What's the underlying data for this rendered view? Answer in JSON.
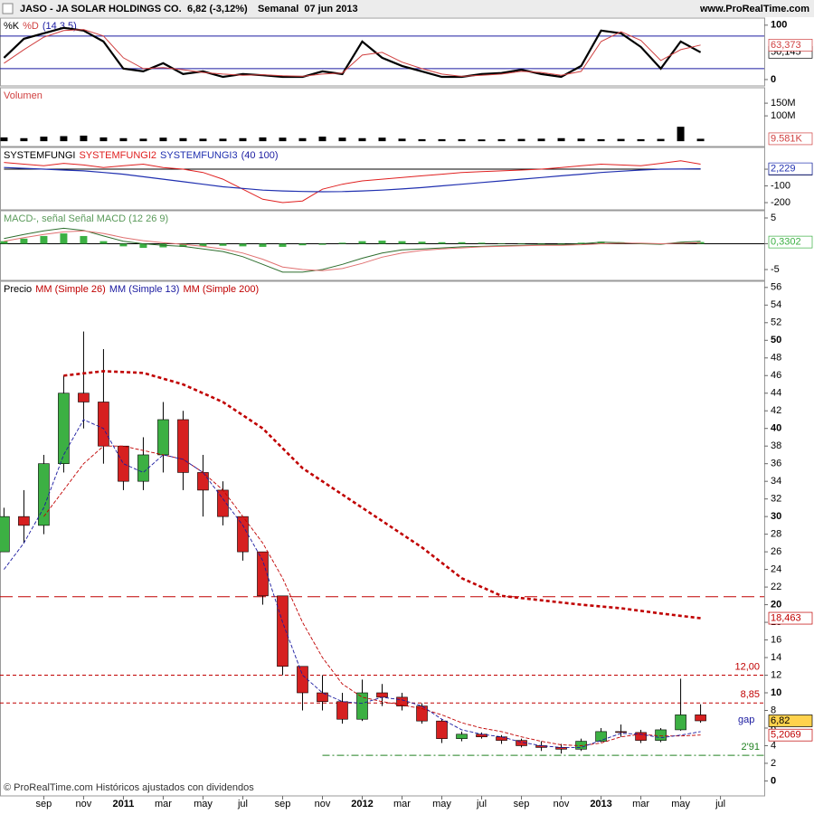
{
  "header": {
    "symbol": "JASO - JA SOLAR HOLDINGS CO.",
    "quote": "6,82 (-3,12%)",
    "period": "Semanal  07 jun 2013",
    "site": "www.ProRealTime.com"
  },
  "footer": "© ProRealTime.com Históricos ajustados con dividendos",
  "chart_data": [
    {
      "type": "line",
      "params": "(14 3 5)",
      "ylim": [
        -11.7,
        113
      ],
      "yticks": [
        0,
        100
      ],
      "x": [
        -2,
        -1,
        0,
        1,
        2,
        3,
        4,
        5,
        6,
        7,
        8,
        9,
        10,
        11,
        12,
        13,
        14,
        15,
        16,
        17,
        18,
        19,
        20,
        21,
        22,
        23,
        24,
        25,
        26,
        27,
        28,
        29,
        30,
        31,
        32,
        33
      ],
      "levels": [
        {
          "value": 80,
          "color": "#1a1aa0",
          "style": "solid"
        },
        {
          "value": 20,
          "color": "#1a1aa0",
          "style": "solid"
        }
      ],
      "series": [
        {
          "name": "%K",
          "color": "#000000",
          "width": 2.2,
          "last_label": "50,145",
          "values": [
            40,
            75,
            85,
            95,
            90,
            70,
            20,
            15,
            30,
            10,
            15,
            5,
            10,
            8,
            5,
            5,
            15,
            10,
            70,
            40,
            25,
            15,
            5,
            5,
            10,
            12,
            18,
            10,
            5,
            25,
            90,
            85,
            60,
            20,
            70,
            50.145
          ]
        },
        {
          "name": "%D",
          "color": "#d04040",
          "width": 1,
          "last_label": "63,373",
          "values": [
            30,
            55,
            78,
            90,
            92,
            80,
            40,
            20,
            22,
            18,
            13,
            10,
            8,
            9,
            7,
            6,
            10,
            12,
            45,
            50,
            32,
            20,
            10,
            6,
            8,
            10,
            15,
            13,
            8,
            15,
            70,
            88,
            72,
            35,
            55,
            63.373
          ]
        }
      ]
    },
    {
      "type": "bar",
      "title": "Volumen",
      "color": "#000000",
      "ylim": [
        -21000000,
        211000000
      ],
      "yticks": [
        {
          "value": 150000000,
          "label": "150M"
        },
        {
          "value": 100000000,
          "label": "100M"
        }
      ],
      "x": [
        -2,
        -1,
        0,
        1,
        2,
        3,
        4,
        5,
        6,
        7,
        8,
        9,
        10,
        11,
        12,
        13,
        14,
        15,
        16,
        17,
        18,
        19,
        20,
        21,
        22,
        23,
        24,
        25,
        26,
        27,
        28,
        29,
        30,
        31,
        32,
        33
      ],
      "values": [
        15000000,
        12000000,
        18000000,
        20000000,
        22000000,
        15000000,
        12000000,
        10000000,
        14000000,
        12000000,
        10000000,
        10000000,
        12000000,
        15000000,
        14000000,
        12000000,
        18000000,
        14000000,
        12000000,
        14000000,
        10000000,
        8000000,
        8000000,
        8000000,
        7000000,
        8000000,
        9000000,
        10000000,
        12000000,
        10000000,
        8000000,
        9000000,
        8000000,
        9000000,
        57000000,
        9581000
      ],
      "last_label": "9.581K"
    },
    {
      "type": "line",
      "params": "(40 100)",
      "ylim": [
        -243,
        130
      ],
      "yticks": [
        0,
        -100,
        -200
      ],
      "x": [
        -2,
        -1,
        0,
        1,
        2,
        3,
        4,
        5,
        6,
        7,
        8,
        9,
        10,
        11,
        12,
        13,
        14,
        15,
        16,
        17,
        18,
        19,
        20,
        21,
        22,
        23,
        24,
        25,
        26,
        27,
        28,
        29,
        30,
        31,
        32,
        33
      ],
      "series": [
        {
          "name": "SYSTEMFUNGI",
          "color": "#000000",
          "width": 1,
          "last_label": "0",
          "values": [
            0,
            0,
            0,
            0,
            0,
            0,
            0,
            0,
            0,
            0,
            0,
            0,
            0,
            0,
            0,
            0,
            0,
            0,
            0,
            0,
            0,
            0,
            0,
            0,
            0,
            0,
            0,
            0,
            0,
            0,
            0,
            0,
            0,
            0,
            0,
            0
          ]
        },
        {
          "name": "SYSTEMFUNGI2",
          "color": "#e02020",
          "width": 1,
          "values": [
            40,
            30,
            20,
            35,
            25,
            10,
            20,
            30,
            10,
            0,
            -20,
            -60,
            -120,
            -180,
            -200,
            -190,
            -120,
            -90,
            -70,
            -60,
            -50,
            -40,
            -30,
            -20,
            -15,
            -10,
            -5,
            0,
            10,
            20,
            30,
            25,
            20,
            35,
            50,
            30
          ]
        },
        {
          "name": "SYSTEMFUNGI3",
          "color": "#2030b0",
          "width": 1.2,
          "last_label": "2,229",
          "values": [
            10,
            5,
            0,
            -5,
            -10,
            -20,
            -30,
            -45,
            -60,
            -75,
            -90,
            -105,
            -115,
            -125,
            -130,
            -133,
            -135,
            -134,
            -130,
            -125,
            -118,
            -110,
            -100,
            -90,
            -80,
            -70,
            -60,
            -50,
            -40,
            -30,
            -20,
            -12,
            -5,
            0,
            1,
            2.229
          ]
        }
      ]
    },
    {
      "type": "combo",
      "title": "MACD-, señal Señal MACD (12 26 9)",
      "ylim": [
        -7.1,
        6.4
      ],
      "yticks": [
        5,
        0,
        -5
      ],
      "x": [
        -2,
        -1,
        0,
        1,
        2,
        3,
        4,
        5,
        6,
        7,
        8,
        9,
        10,
        11,
        12,
        13,
        14,
        15,
        16,
        17,
        18,
        19,
        20,
        21,
        22,
        23,
        24,
        25,
        26,
        27,
        28,
        29,
        30,
        31,
        32,
        33
      ],
      "levels": [
        {
          "value": 0,
          "color": "#000000",
          "style": "solid"
        }
      ],
      "bars": {
        "color": "#3cb043",
        "last_label": "0,3302",
        "values": [
          0.5,
          1,
          1.5,
          2,
          1.5,
          0.5,
          -0.5,
          -0.8,
          -0.7,
          -0.6,
          -0.5,
          -0.4,
          -0.5,
          -0.6,
          -0.6,
          -0.3,
          -0.2,
          0.2,
          0.5,
          0.6,
          0.5,
          0.4,
          0.3,
          0.3,
          0.2,
          0.1,
          0.1,
          0.1,
          0.1,
          0.2,
          0.4,
          0.3,
          0.1,
          -0.1,
          0.3,
          0.3302
        ]
      },
      "series": [
        {
          "color": "#2e6e2e",
          "width": 1,
          "values": [
            1,
            1.8,
            2.5,
            3,
            2.6,
            1.5,
            0.5,
            0,
            -0.3,
            -0.5,
            -1,
            -1.5,
            -2.5,
            -4,
            -5.5,
            -5.5,
            -5,
            -4,
            -2.8,
            -1.8,
            -1.2,
            -1,
            -0.8,
            -0.6,
            -0.5,
            -0.4,
            -0.3,
            -0.2,
            -0.2,
            0,
            0.3,
            0.2,
            0,
            -0.1,
            0.3,
            0.5
          ]
        },
        {
          "color": "#e07070",
          "width": 1,
          "values": [
            0.5,
            1.2,
            1.8,
            2.3,
            2.5,
            2,
            1.2,
            0.6,
            0.2,
            -0.1,
            -0.5,
            -1,
            -1.8,
            -3,
            -4.5,
            -5,
            -5.2,
            -4.8,
            -3.8,
            -2.6,
            -1.8,
            -1.3,
            -1,
            -0.8,
            -0.6,
            -0.5,
            -0.4,
            -0.3,
            -0.3,
            -0.2,
            0,
            0.1,
            0.1,
            0,
            0.1,
            0.2
          ]
        }
      ]
    },
    {
      "type": "candlestick",
      "title": "Precio",
      "up_color": "#3cb043",
      "down_color": "#d62020",
      "xlim": [
        -2.2,
        36.2
      ],
      "xticks": [
        {
          "value": 0,
          "label": "sep"
        },
        {
          "value": 2,
          "label": "nov"
        },
        {
          "value": 4,
          "label": "2011"
        },
        {
          "value": 6,
          "label": "mar"
        },
        {
          "value": 8,
          "label": "may"
        },
        {
          "value": 10,
          "label": "jul"
        },
        {
          "value": 12,
          "label": "sep"
        },
        {
          "value": 14,
          "label": "nov"
        },
        {
          "value": 16,
          "label": "2012"
        },
        {
          "value": 18,
          "label": "mar"
        },
        {
          "value": 20,
          "label": "may"
        },
        {
          "value": 22,
          "label": "jul"
        },
        {
          "value": 24,
          "label": "sep"
        },
        {
          "value": 26,
          "label": "nov"
        },
        {
          "value": 28,
          "label": "2013"
        },
        {
          "value": 30,
          "label": "mar"
        },
        {
          "value": 32,
          "label": "may"
        },
        {
          "value": 34,
          "label": "jul"
        }
      ],
      "ylim": [
        -1.7,
        56.7
      ],
      "yticks": [
        0,
        2,
        4,
        6,
        8,
        10,
        12,
        14,
        16,
        18,
        20,
        22,
        24,
        26,
        28,
        30,
        32,
        34,
        36,
        38,
        40,
        42,
        44,
        46,
        48,
        50,
        52,
        54,
        56
      ],
      "x": [
        -2,
        -1,
        0,
        1,
        2,
        3,
        4,
        5,
        6,
        7,
        8,
        9,
        10,
        11,
        12,
        13,
        14,
        15,
        16,
        17,
        18,
        19,
        20,
        21,
        22,
        23,
        24,
        25,
        26,
        27,
        28,
        29,
        30,
        31,
        32,
        33
      ],
      "open": [
        26,
        30,
        29,
        36,
        44,
        43,
        38,
        34,
        37,
        41,
        35,
        33,
        30,
        26,
        21,
        13,
        10,
        9,
        7,
        10,
        9.5,
        8.5,
        6.8,
        4.8,
        5.3,
        5,
        4.6,
        4,
        3.8,
        3.6,
        4.5,
        5.6,
        5.5,
        4.6,
        5.8,
        7.5
      ],
      "high": [
        31,
        33,
        37,
        46,
        51,
        49,
        38,
        39,
        43,
        42,
        37,
        34,
        30,
        26,
        21,
        13,
        12,
        10,
        11.5,
        11,
        10,
        8.8,
        7,
        5.6,
        5.5,
        5.2,
        4.8,
        4.5,
        4.2,
        4.8,
        6,
        6.4,
        5.8,
        6,
        11.6,
        8.7
      ],
      "low": [
        26,
        27,
        28,
        35,
        40,
        36,
        33,
        33,
        35,
        33,
        30,
        29,
        25,
        20,
        12,
        8,
        8,
        6.5,
        6.8,
        8.5,
        8,
        6.5,
        4.3,
        4.5,
        4.8,
        4.2,
        3.8,
        3.4,
        3.1,
        3.4,
        4.4,
        5,
        4.3,
        4.4,
        5.7,
        6.6
      ],
      "close": [
        30,
        29,
        36,
        44,
        43,
        38,
        34,
        37,
        41,
        35,
        33,
        30,
        26,
        21,
        13,
        10,
        9,
        7,
        10,
        9.5,
        8.5,
        6.8,
        4.8,
        5.3,
        5,
        4.6,
        4,
        3.8,
        3.6,
        4.5,
        5.6,
        5.5,
        4.6,
        5.8,
        7.5,
        6.82
      ],
      "close_label": "6,82",
      "close_label_bg": "#ffd24d",
      "levels": [
        {
          "value": 20.9,
          "color": "#c00000",
          "style": "longdash"
        },
        {
          "value": 12,
          "color": "#c00000",
          "style": "dotted",
          "label": "12,00"
        },
        {
          "value": 8.85,
          "color": "#c00000",
          "style": "dotted",
          "label": "8,85"
        },
        {
          "value": 2.91,
          "color": "#208020",
          "style": "dashdot",
          "label": "2'91",
          "from": 14
        }
      ],
      "annotations": [
        {
          "value": 6.9,
          "label": "gap",
          "color": "#1a1aa0"
        }
      ],
      "series": [
        {
          "name": "MM (Simple 26)",
          "color": "#c00000",
          "width": 0.9,
          "style": "dashed",
          "last_label": "5,2069",
          "x": [
            0,
            1,
            2,
            3,
            4,
            5,
            6,
            7,
            8,
            9,
            10,
            11,
            12,
            13,
            14,
            15,
            16,
            17,
            18,
            19,
            20,
            21,
            22,
            23,
            24,
            25,
            26,
            27,
            28,
            29,
            30,
            31,
            32,
            33
          ],
          "values": [
            30,
            33,
            36,
            38,
            38,
            37.5,
            37,
            36.5,
            35,
            33,
            30,
            27,
            23,
            18,
            14,
            11,
            9.5,
            9,
            8.6,
            8.2,
            7.5,
            6.6,
            6,
            5.6,
            5,
            4.5,
            4.1,
            4,
            4.3,
            5,
            5.3,
            5.1,
            5.1,
            5.2069
          ]
        },
        {
          "name": "MM (Simple 13)",
          "color": "#1a1aa0",
          "width": 0.9,
          "style": "dashed",
          "x": [
            -2,
            -1,
            0,
            1,
            2,
            3,
            4,
            5,
            6,
            7,
            8,
            9,
            10,
            11,
            12,
            13,
            14,
            15,
            16,
            17,
            18,
            19,
            20,
            21,
            22,
            23,
            24,
            25,
            26,
            27,
            28,
            29,
            30,
            31,
            32,
            33
          ],
          "values": [
            24,
            27,
            31,
            37,
            41,
            40,
            36,
            35,
            37,
            36.5,
            35,
            32,
            29,
            25,
            18,
            12,
            10,
            9,
            8.8,
            9.5,
            9.2,
            8.5,
            7,
            5.8,
            5.3,
            5,
            4.4,
            4,
            3.8,
            3.8,
            4.6,
            5.4,
            5.3,
            4.9,
            5.2,
            5.6
          ]
        },
        {
          "name": "MM (Simple 200)",
          "color": "#c00000",
          "width": 2.6,
          "style": "dotted",
          "last_label": "18,463",
          "x": [
            1,
            3,
            5,
            7,
            9,
            11,
            13,
            15,
            17,
            19,
            21,
            23,
            25,
            27,
            29,
            31,
            33
          ],
          "values": [
            46,
            46.5,
            46.3,
            45,
            43,
            40,
            35.5,
            32.5,
            29.5,
            26.5,
            23,
            21,
            20.5,
            20,
            19.6,
            19,
            18.463
          ]
        }
      ]
    }
  ]
}
